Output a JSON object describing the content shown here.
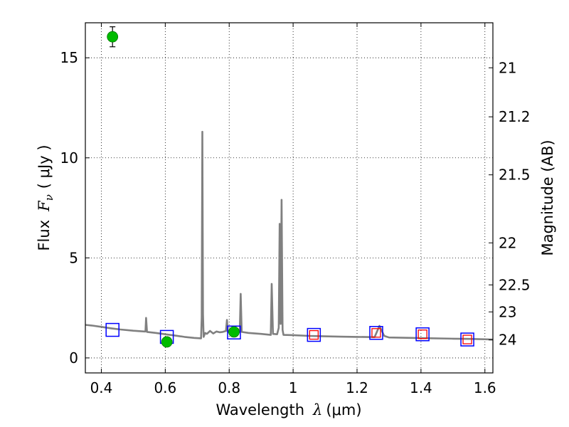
{
  "chart_data": {
    "type": "scatter",
    "xlabel_prefix": "Wavelength",
    "xlabel_symbol": "λ",
    "xlabel_unit": "(μm)",
    "ylabel_prefix": "Flux",
    "ylabel_symbol": "F",
    "ylabel_sub": "ν",
    "ylabel_unit": "( μJy )",
    "y2label": "Magnitude (AB)",
    "xlim": [
      0.35,
      1.625
    ],
    "ylim": [
      -0.75,
      16.75
    ],
    "xticks": [
      0.4,
      0.6,
      0.8,
      1.0,
      1.2,
      1.4,
      1.6
    ],
    "xtick_labels": [
      "0.4",
      "0.6",
      "0.8",
      "1",
      "1.2",
      "1.4",
      "1.6"
    ],
    "yticks": [
      0,
      5,
      10,
      15
    ],
    "ytick_labels": [
      "0",
      "5",
      "10",
      "15"
    ],
    "y2ticks": [
      {
        "label": "21",
        "flux": 14.5
      },
      {
        "label": "21.2",
        "flux": 12.05
      },
      {
        "label": "21.5",
        "flux": 9.15
      },
      {
        "label": "22",
        "flux": 5.75
      },
      {
        "label": "22.5",
        "flux": 3.65
      },
      {
        "label": "23",
        "flux": 2.3
      },
      {
        "label": "24",
        "flux": 0.9
      }
    ],
    "grid": true,
    "colors": {
      "spectrum": "#808080",
      "observed": "#00bb00",
      "model_box": "#0000ff",
      "model_box_inner": "#ff0000"
    },
    "spectrum": {
      "name": "model spectrum",
      "points": [
        [
          0.35,
          1.65
        ],
        [
          0.37,
          1.62
        ],
        [
          0.4,
          1.55
        ],
        [
          0.43,
          1.48
        ],
        [
          0.46,
          1.42
        ],
        [
          0.5,
          1.36
        ],
        [
          0.535,
          1.32
        ],
        [
          0.538,
          1.32
        ],
        [
          0.54,
          2.0
        ],
        [
          0.543,
          1.3
        ],
        [
          0.57,
          1.25
        ],
        [
          0.6,
          1.18
        ],
        [
          0.63,
          1.12
        ],
        [
          0.66,
          1.05
        ],
        [
          0.69,
          1.0
        ],
        [
          0.712,
          0.98
        ],
        [
          0.714,
          2.0
        ],
        [
          0.716,
          11.3
        ],
        [
          0.718,
          2.2
        ],
        [
          0.72,
          1.05
        ],
        [
          0.725,
          1.25
        ],
        [
          0.73,
          1.2
        ],
        [
          0.74,
          1.35
        ],
        [
          0.75,
          1.22
        ],
        [
          0.76,
          1.32
        ],
        [
          0.77,
          1.28
        ],
        [
          0.78,
          1.3
        ],
        [
          0.79,
          1.35
        ],
        [
          0.793,
          1.9
        ],
        [
          0.796,
          1.3
        ],
        [
          0.82,
          1.3
        ],
        [
          0.833,
          1.3
        ],
        [
          0.836,
          3.2
        ],
        [
          0.839,
          1.3
        ],
        [
          0.86,
          1.25
        ],
        [
          0.9,
          1.2
        ],
        [
          0.93,
          1.15
        ],
        [
          0.933,
          3.7
        ],
        [
          0.937,
          1.2
        ],
        [
          0.95,
          1.18
        ],
        [
          0.955,
          1.5
        ],
        [
          0.958,
          6.7
        ],
        [
          0.961,
          1.7
        ],
        [
          0.964,
          7.9
        ],
        [
          0.967,
          1.4
        ],
        [
          0.97,
          1.15
        ],
        [
          1.0,
          1.14
        ],
        [
          1.05,
          1.1
        ],
        [
          1.1,
          1.08
        ],
        [
          1.15,
          1.06
        ],
        [
          1.2,
          1.05
        ],
        [
          1.25,
          1.04
        ],
        [
          1.255,
          1.04
        ],
        [
          1.27,
          1.6
        ],
        [
          1.285,
          1.1
        ],
        [
          1.3,
          1.02
        ],
        [
          1.4,
          0.99
        ],
        [
          1.5,
          0.96
        ],
        [
          1.55,
          0.95
        ],
        [
          1.625,
          0.92
        ]
      ]
    },
    "observed": [
      {
        "name": "observed-point",
        "x": 0.435,
        "y": 16.05,
        "err": 0.5
      },
      {
        "name": "observed-point",
        "x": 0.605,
        "y": 0.8,
        "err": 0.12
      },
      {
        "name": "observed-point",
        "x": 0.815,
        "y": 1.3,
        "err": 0.15
      }
    ],
    "model_boxes": [
      {
        "x": 0.435,
        "y": 1.4,
        "inner": false
      },
      {
        "x": 0.605,
        "y": 1.05,
        "inner": false
      },
      {
        "x": 0.815,
        "y": 1.27,
        "inner": false
      },
      {
        "x": 1.065,
        "y": 1.15,
        "inner": true
      },
      {
        "x": 1.26,
        "y": 1.25,
        "inner": true
      },
      {
        "x": 1.405,
        "y": 1.18,
        "inner": true
      },
      {
        "x": 1.545,
        "y": 0.92,
        "inner": true
      }
    ]
  }
}
